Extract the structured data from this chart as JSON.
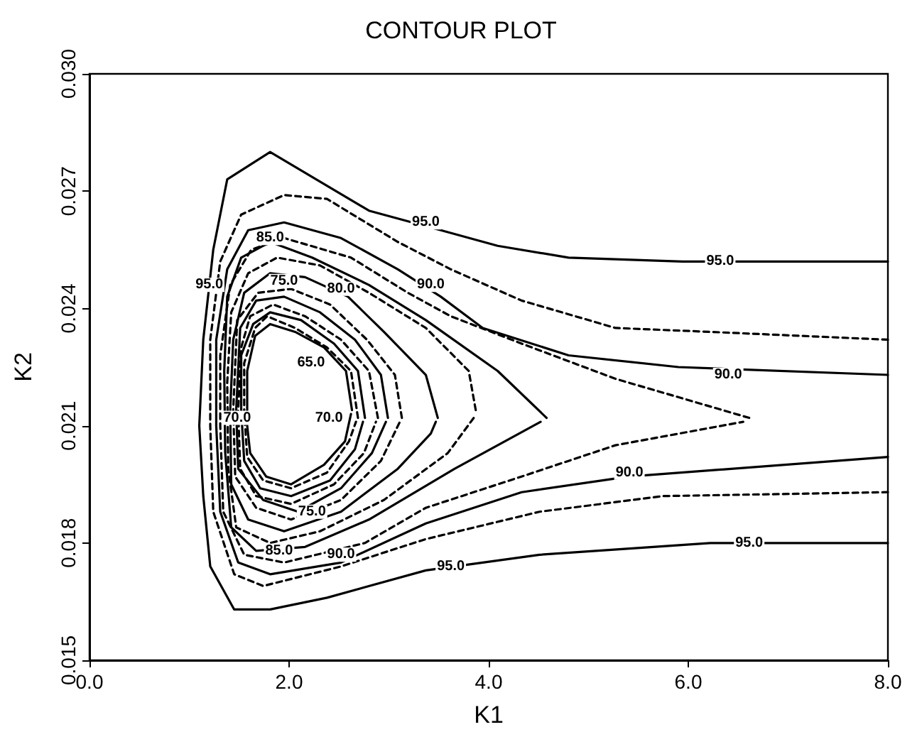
{
  "chart_data": {
    "type": "line",
    "title": "CONTOUR PLOT",
    "xlabel": "K1",
    "ylabel": "K2",
    "xlim": [
      0,
      8
    ],
    "ylim": [
      0.015,
      0.03
    ],
    "xticks": [
      {
        "value": 0,
        "label": "0.0"
      },
      {
        "value": 2,
        "label": "2.0"
      },
      {
        "value": 4,
        "label": "4.0"
      },
      {
        "value": 6,
        "label": "6.0"
      },
      {
        "value": 8,
        "label": "8.0"
      }
    ],
    "yticks": [
      {
        "value": 0.015,
        "label": "0.015"
      },
      {
        "value": 0.018,
        "label": "0.018"
      },
      {
        "value": 0.021,
        "label": "0.021"
      },
      {
        "value": 0.024,
        "label": "0.024"
      },
      {
        "value": 0.027,
        "label": "0.027"
      },
      {
        "value": 0.03,
        "label": "0.030"
      }
    ],
    "grid": false,
    "marker": "none",
    "series": [
      {
        "color": "#000000",
        "line_style": "solid",
        "x": [
          8.0,
          5.94,
          4.8,
          4.09,
          3.52,
          2.8,
          1.81,
          1.38,
          1.24,
          1.14,
          1.1,
          1.14,
          1.21,
          1.45,
          1.81,
          2.38,
          3.37,
          4.51,
          6.22,
          8.0
        ],
        "values": [
          0.0252,
          0.0252,
          0.0253,
          0.0256,
          0.026,
          0.0265,
          0.028,
          0.0273,
          0.0255,
          0.0232,
          0.021,
          0.0192,
          0.0174,
          0.0163,
          0.0163,
          0.0166,
          0.0173,
          0.0177,
          0.018,
          0.018
        ]
      },
      {
        "color": "#000000",
        "line_style": "dashed",
        "x": [
          8.0,
          6.22,
          5.27,
          4.33,
          3.62,
          3.09,
          2.38,
          1.95,
          1.52,
          1.31,
          1.21,
          1.21,
          1.24,
          1.45,
          1.74,
          2.52,
          3.37,
          4.51,
          5.75,
          8.0
        ],
        "values": [
          0.0232,
          0.0234,
          0.0235,
          0.0242,
          0.025,
          0.0257,
          0.0268,
          0.0269,
          0.0264,
          0.0252,
          0.0232,
          0.021,
          0.0188,
          0.0172,
          0.0169,
          0.0174,
          0.0181,
          0.0188,
          0.0192,
          0.0193
        ]
      },
      {
        "color": "#000000",
        "line_style": "solid",
        "x": [
          8.0,
          5.9,
          4.8,
          3.94,
          3.52,
          3.09,
          2.52,
          1.95,
          1.59,
          1.38,
          1.27,
          1.27,
          1.31,
          1.49,
          1.81,
          2.52,
          3.37,
          4.33,
          5.41,
          8.0
        ],
        "values": [
          0.0223,
          0.0225,
          0.0228,
          0.0235,
          0.0243,
          0.025,
          0.0258,
          0.0262,
          0.026,
          0.025,
          0.0232,
          0.021,
          0.0188,
          0.0175,
          0.0172,
          0.0175,
          0.0185,
          0.0193,
          0.0197,
          0.0202
        ]
      },
      {
        "color": "#000000",
        "line_style": "dashed",
        "x": [
          6.61,
          5.27,
          4.33,
          3.62,
          3.19,
          2.62,
          1.95,
          1.62,
          1.41,
          1.31,
          1.31,
          1.34,
          1.55,
          1.95,
          2.76,
          3.37,
          4.33,
          5.27,
          6.55
        ],
        "values": [
          0.0212,
          0.0222,
          0.0231,
          0.0238,
          0.0244,
          0.0253,
          0.0258,
          0.0255,
          0.0246,
          0.0228,
          0.021,
          0.0188,
          0.0177,
          0.0175,
          0.018,
          0.0189,
          0.0197,
          0.0205,
          0.0211
        ]
      },
      {
        "color": "#000000",
        "line_style": "solid",
        "x": [
          4.58,
          4.09,
          3.37,
          2.8,
          2.23,
          1.81,
          1.52,
          1.38,
          1.35,
          1.36,
          1.42,
          1.67,
          2.16,
          2.8,
          3.66,
          4.52
        ],
        "values": [
          0.0212,
          0.0224,
          0.0237,
          0.0246,
          0.0253,
          0.0257,
          0.0253,
          0.0243,
          0.0224,
          0.0203,
          0.0184,
          0.0178,
          0.0179,
          0.0186,
          0.0199,
          0.0211
        ]
      },
      {
        "color": "#000000",
        "line_style": "dashed",
        "x": [
          3.87,
          3.8,
          3.37,
          2.8,
          2.31,
          1.88,
          1.59,
          1.42,
          1.38,
          1.39,
          1.47,
          1.81,
          2.31,
          2.95,
          3.59,
          3.85
        ],
        "values": [
          0.0214,
          0.0224,
          0.0235,
          0.0244,
          0.0251,
          0.0253,
          0.0249,
          0.0239,
          0.0221,
          0.0199,
          0.0184,
          0.018,
          0.0183,
          0.0191,
          0.0203,
          0.0212
        ]
      },
      {
        "color": "#000000",
        "line_style": "solid",
        "x": [
          3.49,
          3.37,
          2.95,
          2.59,
          2.16,
          1.81,
          1.55,
          1.44,
          1.41,
          1.42,
          1.59,
          1.95,
          2.52,
          3.09,
          3.42,
          3.47
        ],
        "values": [
          0.0212,
          0.0223,
          0.0234,
          0.0243,
          0.0248,
          0.0249,
          0.0244,
          0.0232,
          0.0214,
          0.0195,
          0.0186,
          0.0183,
          0.0188,
          0.0199,
          0.0208,
          0.0211
        ]
      },
      {
        "color": "#000000",
        "line_style": "dashed",
        "x": [
          3.13,
          3.06,
          2.78,
          2.41,
          2.02,
          1.69,
          1.48,
          1.44,
          1.46,
          1.67,
          2.02,
          2.52,
          2.92,
          3.11
        ],
        "values": [
          0.0212,
          0.0223,
          0.0232,
          0.0241,
          0.0245,
          0.0244,
          0.0237,
          0.0214,
          0.0197,
          0.0189,
          0.0186,
          0.0191,
          0.0201,
          0.0211
        ]
      },
      {
        "color": "#000000",
        "line_style": "solid",
        "x": [
          2.99,
          2.92,
          2.66,
          2.31,
          1.95,
          1.67,
          1.51,
          1.47,
          1.49,
          1.74,
          2.09,
          2.52,
          2.83,
          2.97
        ],
        "values": [
          0.0212,
          0.0223,
          0.0232,
          0.0239,
          0.0243,
          0.0242,
          0.0235,
          0.0214,
          0.0199,
          0.0191,
          0.0188,
          0.0194,
          0.0203,
          0.0211
        ]
      },
      {
        "color": "#000000",
        "line_style": "dashed",
        "x": [
          2.89,
          2.8,
          2.52,
          2.16,
          1.84,
          1.61,
          1.52,
          1.49,
          1.51,
          1.67,
          2.02,
          2.45,
          2.75,
          2.87
        ],
        "values": [
          0.0212,
          0.0224,
          0.0232,
          0.0238,
          0.0241,
          0.0238,
          0.023,
          0.0214,
          0.0199,
          0.0192,
          0.019,
          0.0195,
          0.0203,
          0.0211
        ]
      },
      {
        "color": "#000000",
        "line_style": "solid",
        "x": [
          2.76,
          2.69,
          2.45,
          2.12,
          1.81,
          1.64,
          1.52,
          1.52,
          1.55,
          1.71,
          2.02,
          2.41,
          2.66,
          2.74
        ],
        "values": [
          0.0212,
          0.0224,
          0.0231,
          0.0237,
          0.0239,
          0.0236,
          0.0228,
          0.0214,
          0.0201,
          0.0194,
          0.0192,
          0.0196,
          0.0204,
          0.0211
        ]
      },
      {
        "color": "#000000",
        "line_style": "dashed",
        "x": [
          2.69,
          2.62,
          2.38,
          2.06,
          1.78,
          1.66,
          1.55,
          1.55,
          1.58,
          1.74,
          2.02,
          2.38,
          2.6,
          2.67
        ],
        "values": [
          0.0212,
          0.0224,
          0.023,
          0.0235,
          0.0238,
          0.0235,
          0.0226,
          0.0214,
          0.0202,
          0.0196,
          0.0194,
          0.0198,
          0.0206,
          0.0211
        ]
      },
      {
        "color": "#000000",
        "line_style": "solid",
        "x": [
          2.63,
          2.57,
          2.35,
          2.06,
          1.81,
          1.66,
          1.58,
          1.58,
          1.61,
          1.77,
          2.02,
          2.35,
          2.56,
          2.62
        ],
        "values": [
          0.0214,
          0.0224,
          0.023,
          0.0234,
          0.0236,
          0.0233,
          0.0224,
          0.021,
          0.0203,
          0.0197,
          0.0195,
          0.02,
          0.0206,
          0.0213
        ]
      }
    ],
    "annotations": [
      {
        "text": "95.0",
        "x": 3.37,
        "y": 0.0262
      },
      {
        "text": "95.0",
        "x": 1.2,
        "y": 0.0246
      },
      {
        "text": "95.0",
        "x": 6.32,
        "y": 0.0252
      },
      {
        "text": "95.0",
        "x": 3.62,
        "y": 0.0174
      },
      {
        "text": "95.0",
        "x": 6.61,
        "y": 0.018
      },
      {
        "text": "90.0",
        "x": 3.42,
        "y": 0.0246
      },
      {
        "text": "90.0",
        "x": 6.4,
        "y": 0.0223
      },
      {
        "text": "90.0",
        "x": 5.41,
        "y": 0.0198
      },
      {
        "text": "90.0",
        "x": 2.52,
        "y": 0.0177
      },
      {
        "text": "85.0",
        "x": 1.81,
        "y": 0.0258
      },
      {
        "text": "85.0",
        "x": 1.9,
        "y": 0.0178
      },
      {
        "text": "80.0",
        "x": 2.52,
        "y": 0.0245
      },
      {
        "text": "75.0",
        "x": 1.95,
        "y": 0.0247
      },
      {
        "text": "75.0",
        "x": 2.23,
        "y": 0.0188
      },
      {
        "text": "65.0",
        "x": 2.22,
        "y": 0.0226
      },
      {
        "text": "70.0",
        "x": 2.4,
        "y": 0.0212
      },
      {
        "text": "70.0",
        "x": 1.48,
        "y": 0.0212
      }
    ]
  }
}
